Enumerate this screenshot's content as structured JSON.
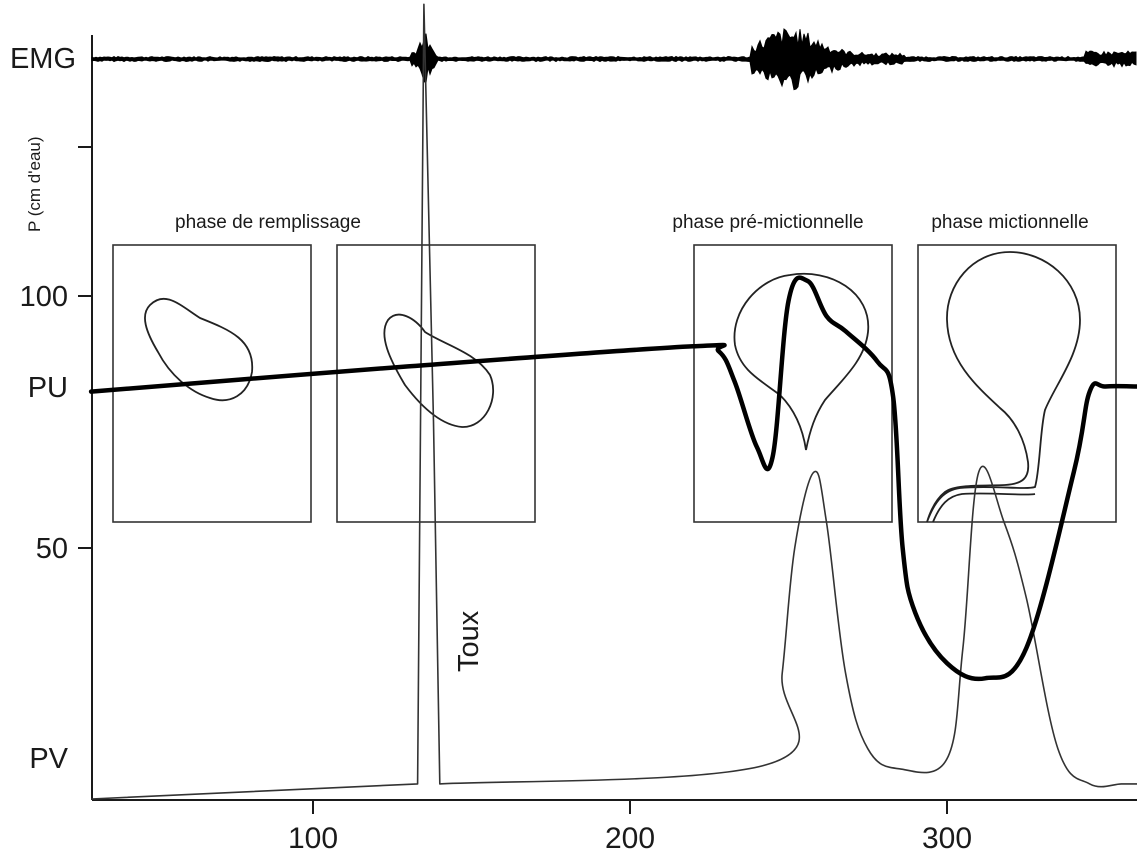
{
  "chart_data": {
    "type": "line",
    "title": "",
    "xlabel": "",
    "ylabel": "P (cm d'eau)",
    "x_ticks": [
      "100",
      "200",
      "300"
    ],
    "x_tick_values": [
      100,
      200,
      300
    ],
    "xlim": [
      30,
      360
    ],
    "y_ticks": [
      "100",
      "50"
    ],
    "y_tick_values": [
      100,
      50
    ],
    "ylim": [
      0,
      160
    ],
    "row_labels": {
      "emg": "EMG",
      "pu": "PU",
      "pv": "PV"
    },
    "annotations": {
      "cough": "Toux"
    },
    "phases": [
      {
        "label": "phase de remplissage",
        "x_start": 37,
        "x_end": 170
      },
      {
        "label": "phase pré-mictionnelle",
        "x_start": 250,
        "x_end": 282
      },
      {
        "label": "phase mictionnelle",
        "x_start": 290,
        "x_end": 358
      }
    ],
    "series": [
      {
        "name": "PU",
        "x": [
          30,
          130,
          220,
          228,
          233,
          240,
          245,
          250,
          256,
          262,
          268,
          278,
          283,
          286,
          290,
          300,
          312,
          325,
          340,
          345,
          350,
          360
        ],
        "values": [
          81,
          86,
          90,
          89,
          83,
          70,
          68,
          99,
          103,
          96,
          93,
          87,
          80,
          50,
          37,
          27,
          24,
          30,
          65,
          81,
          82,
          82
        ]
      },
      {
        "name": "PV",
        "x": [
          30,
          133,
          135,
          138,
          140,
          244,
          248,
          252,
          258,
          262,
          268,
          275,
          285,
          300,
          305,
          310,
          318,
          325,
          335,
          345,
          355,
          360
        ],
        "values": [
          0,
          3,
          158,
          75,
          3,
          7,
          25,
          50,
          65,
          55,
          25,
          10,
          6,
          8,
          30,
          65,
          55,
          40,
          10,
          3,
          3,
          3
        ]
      }
    ]
  }
}
